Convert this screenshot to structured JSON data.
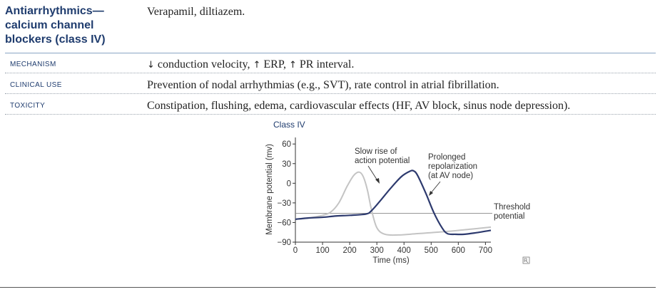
{
  "heading": {
    "line1": "Antiarrhythmics—",
    "line2": "calcium channel",
    "line3": "blockers (class IV)"
  },
  "drugs": "Verapamil, diltiazem.",
  "rows": [
    {
      "label": "MECHANISM",
      "parts": [
        {
          "arrow": "↓",
          "text": " conduction velocity, "
        },
        {
          "arrow": "↑",
          "text": " ERP, "
        },
        {
          "arrow": "↑",
          "text": " PR interval."
        }
      ]
    },
    {
      "label": "CLINICAL USE",
      "text": "Prevention of nodal arrhythmias (e.g., SVT), rate control in atrial fibrillation."
    },
    {
      "label": "TOXICITY",
      "text": "Constipation, flushing, edema, cardiovascular effects (HF, AV block, sinus node depression)."
    }
  ],
  "chart_data": {
    "type": "line",
    "title": "Class IV",
    "xlabel": "Time (ms)",
    "ylabel": "Membrane potential (mv)",
    "xlim": [
      0,
      720
    ],
    "ylim": [
      -90,
      70
    ],
    "x_ticks": [
      0,
      100,
      200,
      300,
      400,
      500,
      600,
      700
    ],
    "y_ticks": [
      60,
      30,
      0,
      -30,
      -60,
      -90
    ],
    "y_tick_labels": [
      "60",
      "30",
      "0",
      "−30",
      "−60",
      "−90"
    ],
    "threshold": {
      "y": -46,
      "label_line1": "Threshold",
      "label_line2": "potential"
    },
    "series": [
      {
        "color": "#c4c4c4",
        "x": [
          0,
          50,
          100,
          130,
          160,
          190,
          215,
          235,
          250,
          265,
          280,
          300,
          330,
          380,
          450,
          550,
          650,
          720
        ],
        "y": [
          -55,
          -53,
          -49,
          -44,
          -30,
          -5,
          12,
          17,
          10,
          -10,
          -40,
          -68,
          -78,
          -79,
          -77,
          -74,
          -70,
          -67
        ]
      },
      {
        "color": "#2d3a6e",
        "x": [
          0,
          50,
          100,
          150,
          200,
          260,
          280,
          310,
          350,
          390,
          420,
          435,
          450,
          480,
          510,
          540,
          560,
          590,
          620,
          660,
          720
        ],
        "y": [
          -55,
          -53,
          -52,
          -50,
          -49,
          -47,
          -42,
          -28,
          -8,
          10,
          18,
          19,
          12,
          -15,
          -45,
          -68,
          -77,
          -78,
          -78,
          -76,
          -72
        ]
      }
    ],
    "annotations": [
      {
        "line1": "Slow rise of",
        "line2": "action potential"
      },
      {
        "line1": "Prolonged",
        "line2": "repolarization",
        "line3": "(at AV node)"
      }
    ]
  }
}
